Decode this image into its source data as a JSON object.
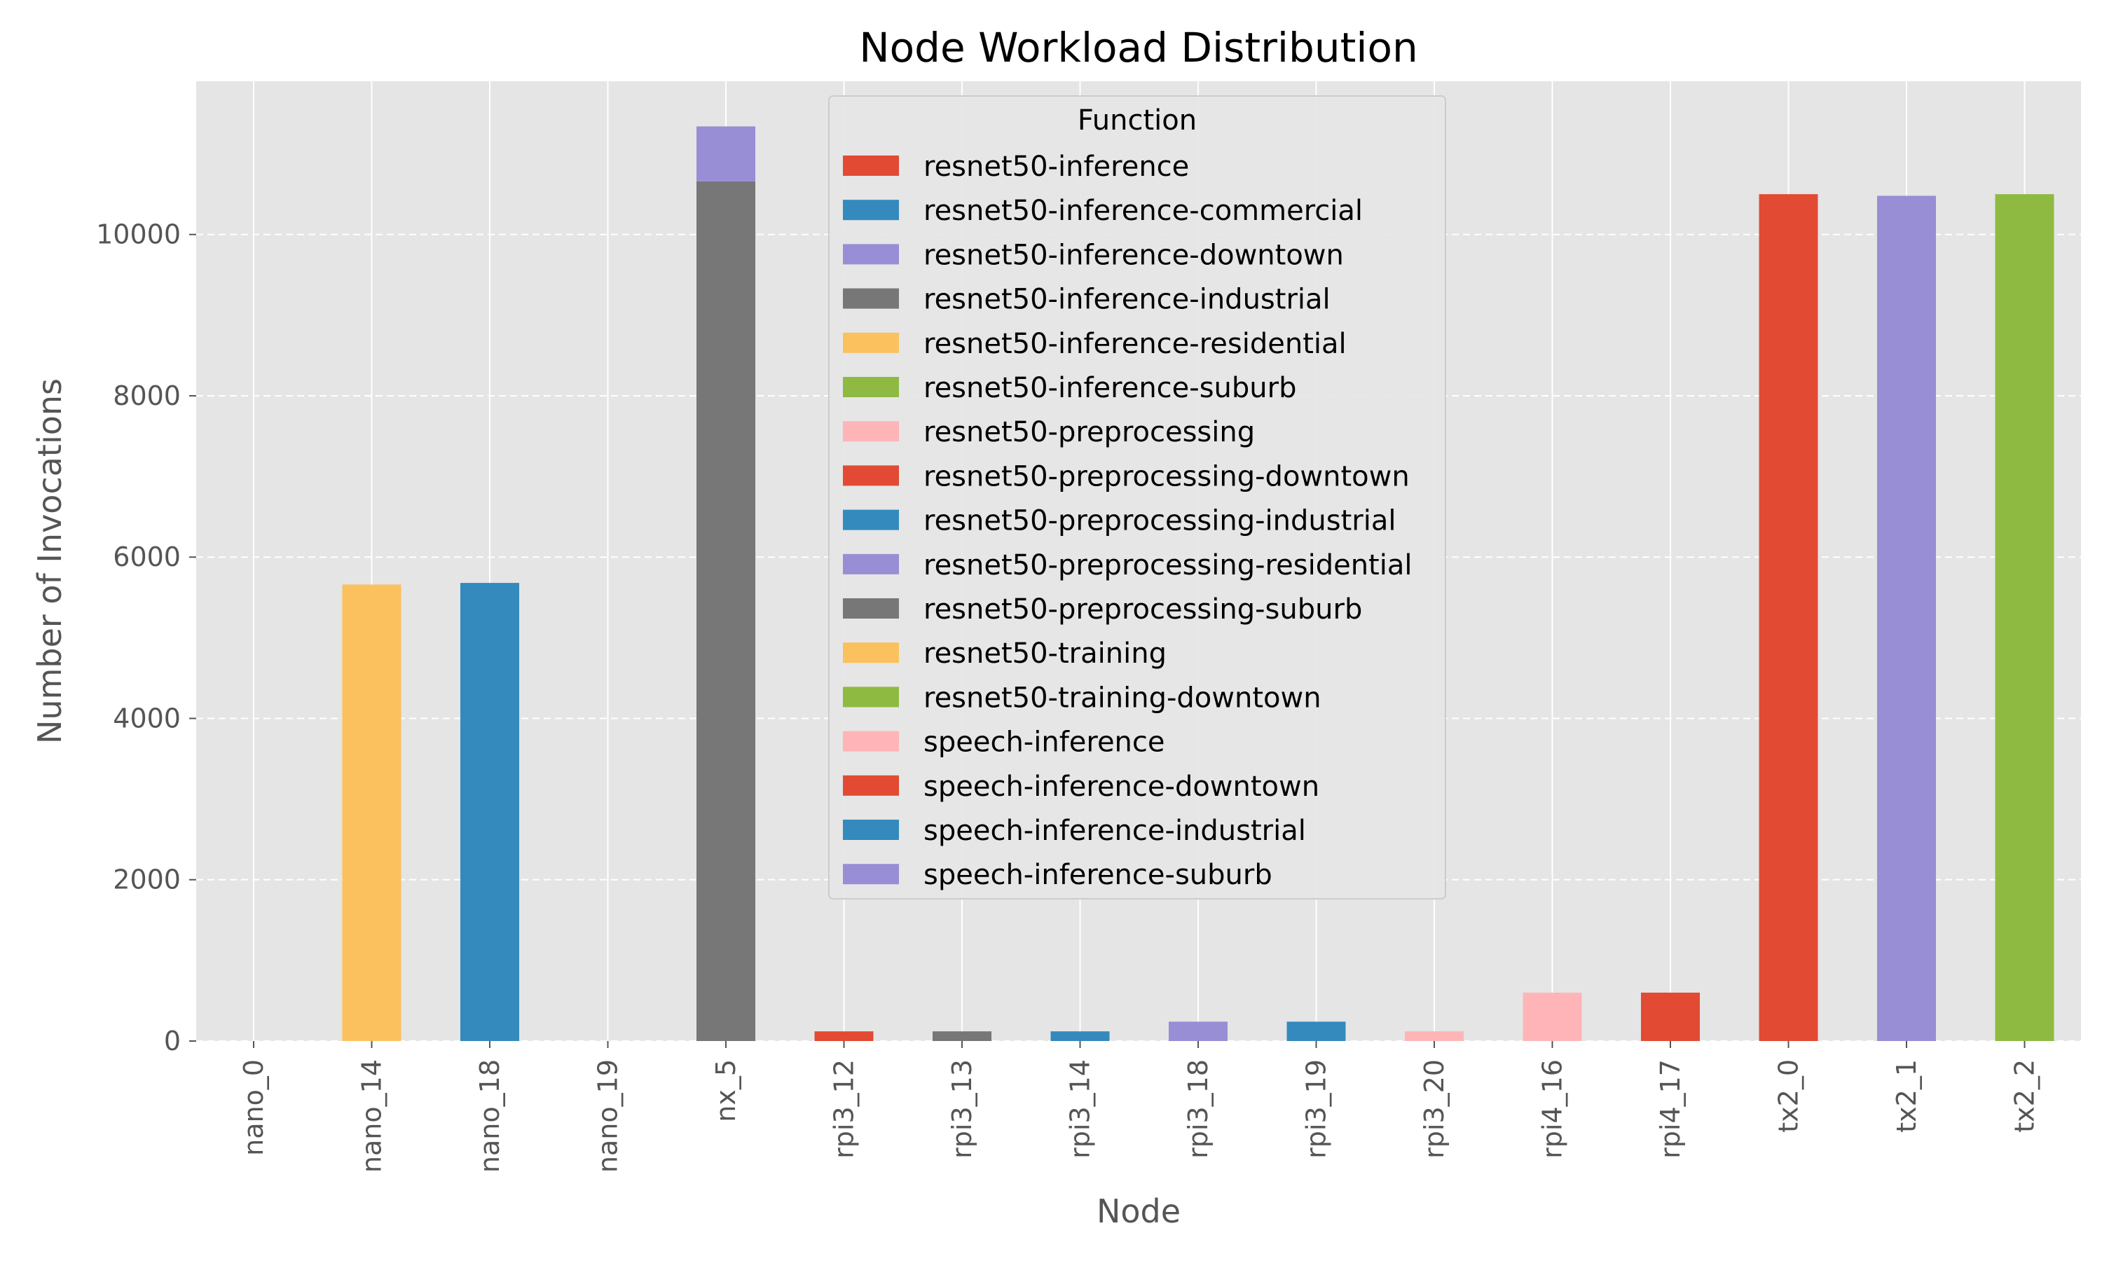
{
  "chart_data": {
    "type": "bar",
    "stacked": true,
    "title": "Node Workload Distribution",
    "xlabel": "Node",
    "ylabel": "Number of Invocations",
    "ylim": [
      0,
      11900
    ],
    "yticks": [
      0,
      2000,
      4000,
      6000,
      8000,
      10000
    ],
    "grid": true,
    "legend_title": "Function",
    "legend_position": "top-center",
    "categories": [
      "nano_0",
      "nano_14",
      "nano_18",
      "nano_19",
      "nx_5",
      "rpi3_12",
      "rpi3_13",
      "rpi3_14",
      "rpi3_18",
      "rpi3_19",
      "rpi3_20",
      "rpi4_16",
      "rpi4_17",
      "tx2_0",
      "tx2_1",
      "tx2_2"
    ],
    "series": [
      {
        "name": "resnet50-inference",
        "color": "#E24A33",
        "values": [
          0,
          0,
          0,
          0,
          0,
          0,
          0,
          0,
          0,
          0,
          0,
          0,
          0,
          10500,
          0,
          0
        ]
      },
      {
        "name": "resnet50-inference-commercial",
        "color": "#348ABD",
        "values": [
          0,
          0,
          5680,
          0,
          0,
          0,
          0,
          0,
          0,
          0,
          0,
          0,
          0,
          0,
          0,
          0
        ]
      },
      {
        "name": "resnet50-inference-downtown",
        "color": "#988ED5",
        "values": [
          0,
          0,
          0,
          0,
          0,
          0,
          0,
          0,
          0,
          0,
          0,
          0,
          0,
          0,
          10480,
          0
        ]
      },
      {
        "name": "resnet50-inference-industrial",
        "color": "#777777",
        "values": [
          0,
          0,
          0,
          0,
          10660,
          0,
          0,
          0,
          0,
          0,
          0,
          0,
          0,
          0,
          0,
          0
        ]
      },
      {
        "name": "resnet50-inference-residential",
        "color": "#FBC15E",
        "values": [
          0,
          5660,
          0,
          0,
          0,
          0,
          0,
          0,
          0,
          0,
          0,
          0,
          0,
          0,
          0,
          0
        ]
      },
      {
        "name": "resnet50-inference-suburb",
        "color": "#8EBA42",
        "values": [
          0,
          0,
          0,
          0,
          0,
          0,
          0,
          0,
          0,
          0,
          0,
          0,
          0,
          0,
          0,
          10500
        ]
      },
      {
        "name": "resnet50-preprocessing",
        "color": "#FFB5B8",
        "values": [
          0,
          0,
          0,
          0,
          0,
          0,
          0,
          0,
          0,
          0,
          0,
          600,
          0,
          0,
          0,
          0
        ]
      },
      {
        "name": "resnet50-preprocessing-downtown",
        "color": "#E24A33",
        "values": [
          0,
          0,
          0,
          0,
          0,
          0,
          0,
          0,
          0,
          0,
          0,
          0,
          600,
          0,
          0,
          0
        ]
      },
      {
        "name": "resnet50-preprocessing-industrial",
        "color": "#348ABD",
        "values": [
          0,
          0,
          0,
          0,
          0,
          0,
          0,
          0,
          0,
          240,
          0,
          0,
          0,
          0,
          0,
          0
        ]
      },
      {
        "name": "resnet50-preprocessing-residential",
        "color": "#988ED5",
        "values": [
          0,
          0,
          0,
          0,
          0,
          0,
          0,
          0,
          240,
          0,
          0,
          0,
          0,
          0,
          0,
          0
        ]
      },
      {
        "name": "resnet50-preprocessing-suburb",
        "color": "#777777",
        "values": [
          0,
          0,
          0,
          0,
          0,
          0,
          120,
          0,
          0,
          0,
          0,
          0,
          0,
          0,
          0,
          0
        ]
      },
      {
        "name": "resnet50-training",
        "color": "#FBC15E",
        "values": [
          0,
          0,
          0,
          0,
          0,
          0,
          0,
          0,
          0,
          0,
          0,
          0,
          0,
          0,
          0,
          0
        ]
      },
      {
        "name": "resnet50-training-downtown",
        "color": "#8EBA42",
        "values": [
          0,
          0,
          0,
          0,
          0,
          0,
          0,
          0,
          0,
          0,
          0,
          0,
          0,
          0,
          0,
          0
        ]
      },
      {
        "name": "speech-inference",
        "color": "#FFB5B8",
        "values": [
          0,
          0,
          0,
          0,
          0,
          0,
          0,
          0,
          0,
          0,
          120,
          0,
          0,
          0,
          0,
          0
        ]
      },
      {
        "name": "speech-inference-downtown",
        "color": "#E24A33",
        "values": [
          0,
          0,
          0,
          0,
          0,
          120,
          0,
          0,
          0,
          0,
          0,
          0,
          0,
          0,
          0,
          0
        ]
      },
      {
        "name": "speech-inference-industrial",
        "color": "#348ABD",
        "values": [
          0,
          0,
          0,
          0,
          0,
          0,
          0,
          120,
          0,
          0,
          0,
          0,
          0,
          0,
          0,
          0
        ]
      },
      {
        "name": "speech-inference-suburb",
        "color": "#988ED5",
        "values": [
          0,
          0,
          0,
          0,
          680,
          0,
          0,
          0,
          0,
          0,
          0,
          0,
          0,
          0,
          0,
          0
        ]
      }
    ]
  }
}
